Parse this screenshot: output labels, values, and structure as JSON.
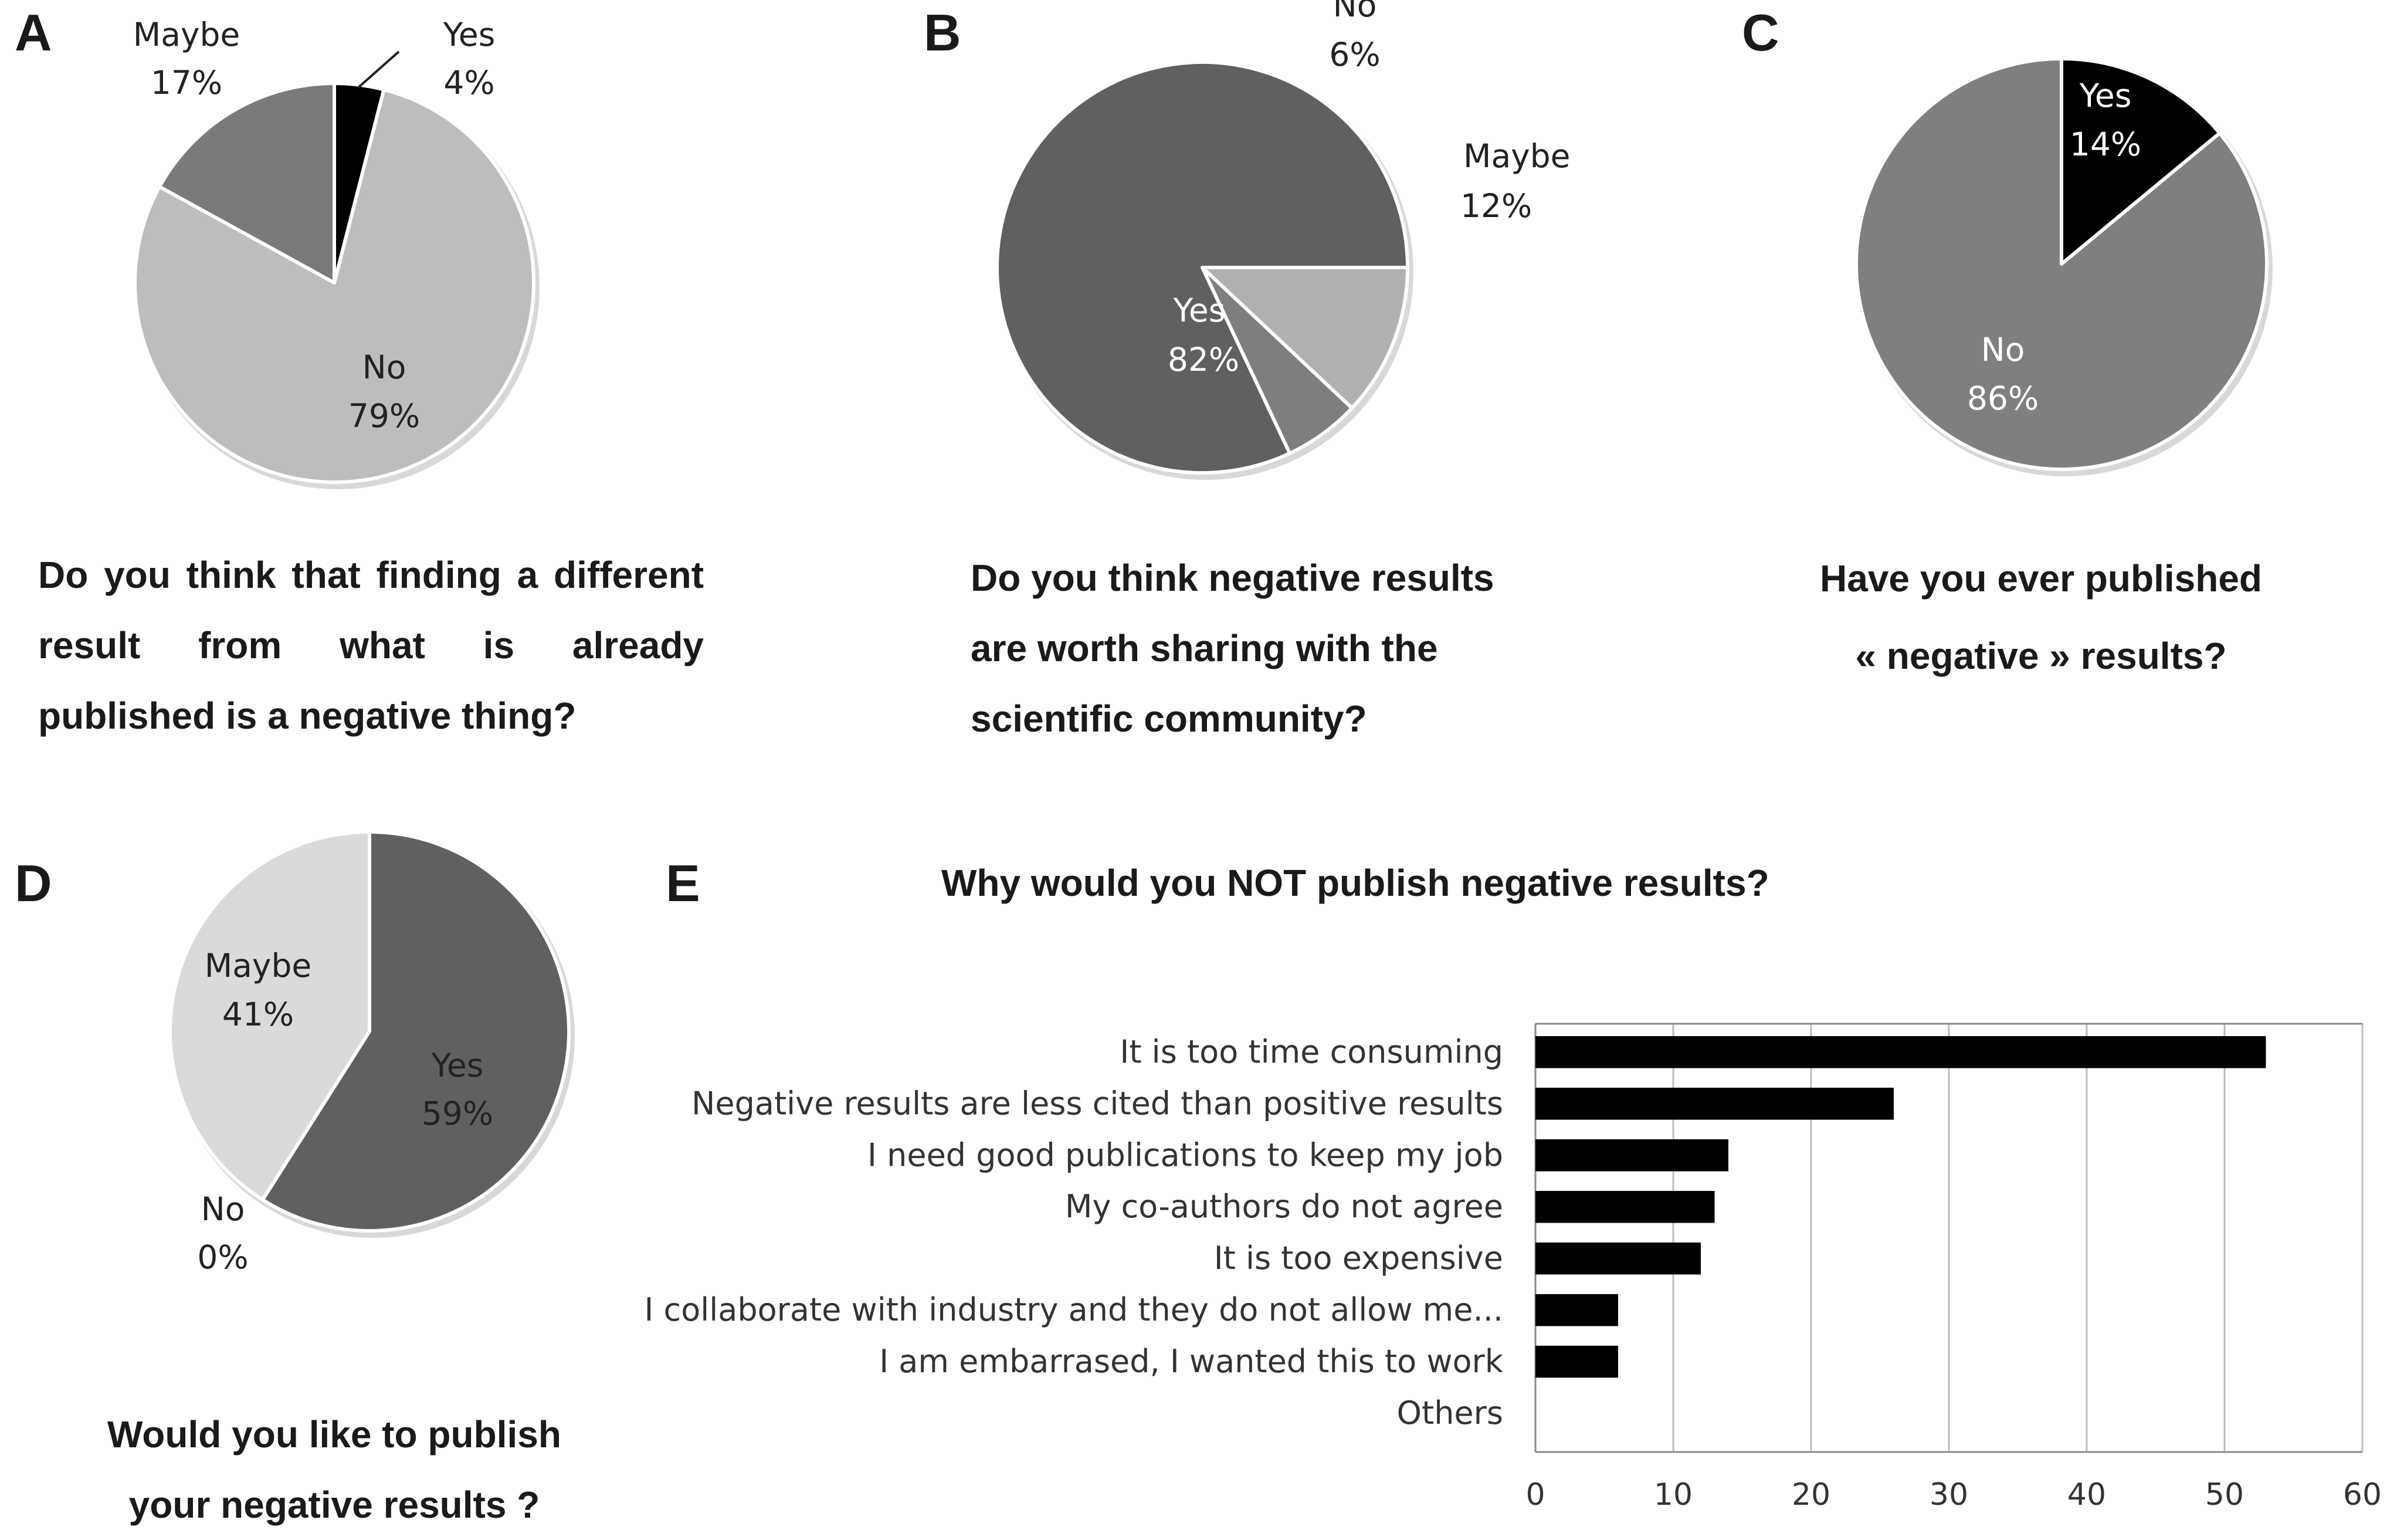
{
  "panels": {
    "a": {
      "letter": "A",
      "question_lines": [
        "Do you think that finding a different",
        "result from what is already",
        "published is a negative thing?"
      ]
    },
    "b": {
      "letter": "B",
      "question_lines": [
        "Do you think negative results",
        "are worth sharing with the",
        "scientific community?"
      ]
    },
    "c": {
      "letter": "C",
      "question_lines": [
        "Have you ever published",
        "« negative » results?"
      ]
    },
    "d": {
      "letter": "D",
      "question_lines": [
        "Would you like to publish",
        "your negative results ?"
      ]
    },
    "e": {
      "letter": "E",
      "title": "Why would you NOT publish negative results?"
    }
  },
  "chart_data": [
    {
      "type": "pie",
      "panel": "A",
      "title": "Do you think that finding a different result from what is already published is a negative thing?",
      "slices": [
        {
          "label": "Yes",
          "value": 4,
          "pct_text": "4%",
          "color": "#000000"
        },
        {
          "label": "No",
          "value": 79,
          "pct_text": "79%",
          "color": "#bdbdbd"
        },
        {
          "label": "Maybe",
          "value": 17,
          "pct_text": "17%",
          "color": "#7a7a7a"
        }
      ]
    },
    {
      "type": "pie",
      "panel": "B",
      "title": "Do you think negative results are worth sharing with the scientific community?",
      "slices": [
        {
          "label": "Maybe",
          "value": 12,
          "pct_text": "12%",
          "color": "#b0b0b0"
        },
        {
          "label": "No",
          "value": 6,
          "pct_text": "6%",
          "color": "#7e7e7e"
        },
        {
          "label": "Yes",
          "value": 82,
          "pct_text": "82%",
          "color": "#606060"
        }
      ]
    },
    {
      "type": "pie",
      "panel": "C",
      "title": "Have you ever published « negative » results?",
      "slices": [
        {
          "label": "Yes",
          "value": 14,
          "pct_text": "14%",
          "color": "#000000"
        },
        {
          "label": "No",
          "value": 86,
          "pct_text": "86%",
          "color": "#7f7f7f"
        }
      ]
    },
    {
      "type": "pie",
      "panel": "D",
      "title": "Would you like to publish your negative results ?",
      "slices": [
        {
          "label": "Yes",
          "value": 59,
          "pct_text": "59%",
          "color": "#606060"
        },
        {
          "label": "No",
          "value": 0,
          "pct_text": "0%",
          "color": "#9a9a9a"
        },
        {
          "label": "Maybe",
          "value": 41,
          "pct_text": "41%",
          "color": "#dadada"
        }
      ]
    },
    {
      "type": "bar",
      "orientation": "horizontal",
      "panel": "E",
      "title": "Why would you NOT publish negative results?",
      "categories": [
        "It is too time consuming",
        "Negative results are less cited than positive results",
        "I need good publications to keep my job",
        "My co-authors do not agree",
        "It is too expensive",
        "I collaborate with industry and they do not allow me...",
        "I am embarrased, I wanted this to work",
        "Others"
      ],
      "values": [
        53,
        26,
        14,
        13,
        12,
        6,
        6,
        0
      ],
      "xlim": [
        0,
        60
      ],
      "xticks": [
        0,
        10,
        20,
        30,
        40,
        50,
        60
      ],
      "grid": "vertical",
      "bar_color": "#000000"
    }
  ]
}
